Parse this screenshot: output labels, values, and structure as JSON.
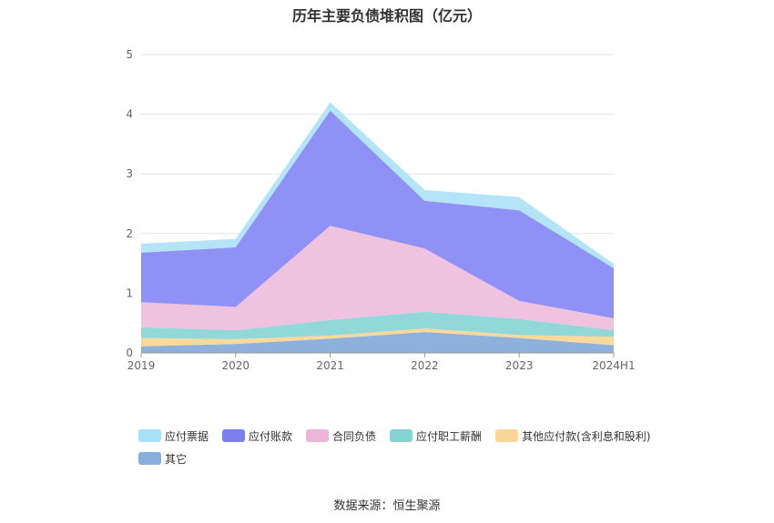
{
  "title": "历年主要负债堆积图（亿元）",
  "source": "数据来源：恒生聚源",
  "chart_data": {
    "type": "area",
    "stacked": true,
    "categories": [
      "2019",
      "2020",
      "2021",
      "2022",
      "2023",
      "2024H1"
    ],
    "ylim": [
      0,
      5
    ],
    "yticks": [
      "0",
      "1",
      "2",
      "3",
      "4",
      "5"
    ],
    "grid": true,
    "legend_position": "bottom",
    "series": [
      {
        "name": "其它",
        "color": "#8eb0dc",
        "values": [
          0.11,
          0.15,
          0.24,
          0.35,
          0.25,
          0.13
        ]
      },
      {
        "name": "其他应付款(含利息和股利)",
        "color": "#fbd99a",
        "values": [
          0.14,
          0.08,
          0.05,
          0.06,
          0.05,
          0.14
        ]
      },
      {
        "name": "应付职工薪酬",
        "color": "#93d8d8",
        "values": [
          0.18,
          0.15,
          0.26,
          0.28,
          0.27,
          0.11
        ]
      },
      {
        "name": "合同负债",
        "color": "#efc3df",
        "values": [
          0.42,
          0.39,
          1.58,
          1.06,
          0.3,
          0.2
        ]
      },
      {
        "name": "应付账款",
        "color": "#8f91f6",
        "values": [
          0.83,
          1.0,
          1.93,
          0.8,
          1.52,
          0.84
        ]
      },
      {
        "name": "应付票据",
        "color": "#b3e4f8",
        "values": [
          0.15,
          0.14,
          0.14,
          0.18,
          0.22,
          0.07
        ]
      }
    ]
  },
  "legend": [
    {
      "label": "应付票据",
      "color": "#a8e0f8"
    },
    {
      "label": "应付账款",
      "color": "#7b80ee"
    },
    {
      "label": "合同负债",
      "color": "#ebb6d8"
    },
    {
      "label": "应付职工薪酬",
      "color": "#86d3d4"
    },
    {
      "label": "其他应付款(含利息和股利)",
      "color": "#fad699"
    },
    {
      "label": "其它",
      "color": "#8aaedb"
    }
  ]
}
